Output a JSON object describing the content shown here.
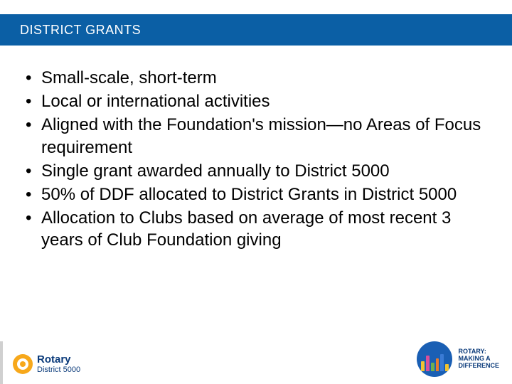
{
  "colors": {
    "header_bg": "#0b5fa5",
    "header_text": "#ffffff",
    "body_text": "#000000",
    "rotary_blue": "#0a3a7a",
    "rotary_gold": "#f7a81b",
    "badge_bg": "#1a5fb4",
    "building_colors": [
      "#f2c230",
      "#d94f9a",
      "#6fb04e",
      "#e87b2c",
      "#3a7bd5"
    ]
  },
  "header": {
    "title": "DISTRICT GRANTS"
  },
  "bullets": [
    "Small-scale, short-term",
    "Local or international activities",
    "Aligned with the Foundation's mission—no Areas of Focus requirement",
    "Single grant awarded annually to District 5000",
    "50% of DDF allocated to District Grants in District 5000",
    "Allocation to Clubs based on average of most recent 3 years of Club Foundation giving"
  ],
  "footer": {
    "left": {
      "org": "Rotary",
      "district": "District 5000"
    },
    "right": {
      "line1": "ROTARY:",
      "line2": "MAKING A",
      "line3": "DIFFERENCE"
    }
  },
  "skyline_heights": [
    14,
    22,
    12,
    18,
    24,
    10
  ],
  "typography": {
    "header_fontsize": 18,
    "bullet_fontsize": 24,
    "footer_org_fontsize": 15,
    "footer_small_fontsize": 11
  }
}
